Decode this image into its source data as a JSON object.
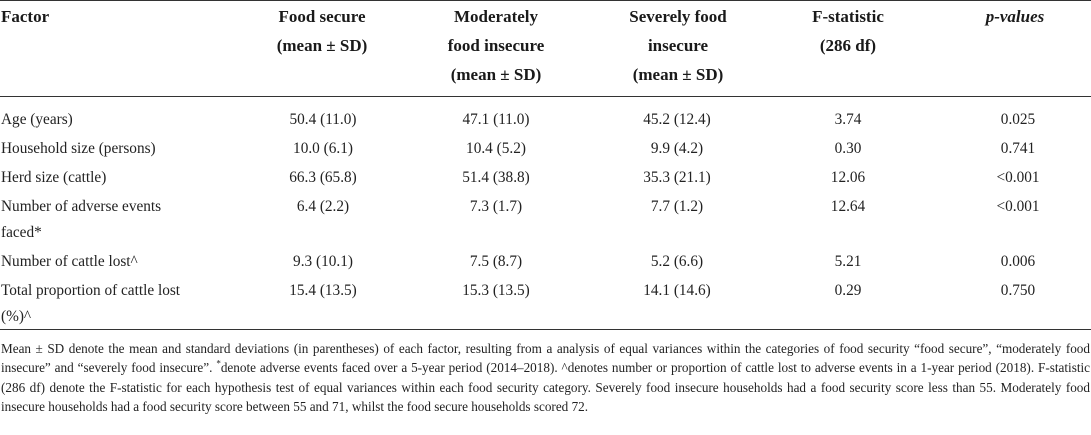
{
  "table": {
    "headers": {
      "factor": [
        "Factor"
      ],
      "food_secure": [
        "Food secure",
        "(mean ± SD)"
      ],
      "moderately": [
        "Moderately",
        "food insecure",
        "(mean ± SD)"
      ],
      "severely": [
        "Severely food",
        "insecure",
        "(mean ± SD)"
      ],
      "fstat": [
        "F-statistic",
        "(286 df)"
      ],
      "pval": [
        "p-values"
      ]
    },
    "rows": [
      {
        "label": [
          "Age (years)"
        ],
        "food_secure": "50.4 (11.0)",
        "moderately": "47.1 (11.0)",
        "severely": "45.2 (12.4)",
        "fstat": "3.74",
        "pval": "0.025"
      },
      {
        "label": [
          "Household size (persons)"
        ],
        "food_secure": "10.0 (6.1)",
        "moderately": "10.4 (5.2)",
        "severely": "9.9 (4.2)",
        "fstat": "0.30",
        "pval": "0.741"
      },
      {
        "label": [
          "Herd size (cattle)"
        ],
        "food_secure": "66.3 (65.8)",
        "moderately": "51.4 (38.8)",
        "severely": "35.3 (21.1)",
        "fstat": "12.06",
        "pval": "<0.001"
      },
      {
        "label": [
          "Number of adverse events",
          "faced*"
        ],
        "food_secure": "6.4 (2.2)",
        "moderately": "7.3 (1.7)",
        "severely": "7.7 (1.2)",
        "fstat": "12.64",
        "pval": "<0.001"
      },
      {
        "label": [
          "Number of cattle lost^"
        ],
        "food_secure": "9.3 (10.1)",
        "moderately": "7.5 (8.7)",
        "severely": "5.2 (6.6)",
        "fstat": "5.21",
        "pval": "0.006"
      },
      {
        "label": [
          "Total proportion of cattle lost",
          "(%)^"
        ],
        "food_secure": "15.4 (13.5)",
        "moderately": "15.3 (13.5)",
        "severely": "14.1 (14.6)",
        "fstat": "0.29",
        "pval": "0.750"
      }
    ]
  },
  "footnote": {
    "part1": "Mean ± SD denote the mean and standard deviations (in parentheses) of each factor, resulting from a analysis of equal variances within the categories of food security “food secure”, “moderately food insecure” and “severely food insecure”. ",
    "star": "*",
    "part2": "denote adverse events faced over a 5-year period (2014–2018). ",
    "caret": "^",
    "part3": "denotes number or proportion of cattle lost to adverse events in a 1-year period (2018). F-statistic (286 df) denote the F-statistic for each hypothesis test of equal variances within each food security category. Severely food insecure households had a food security score less than 55. Moderately food insecure households had a food security score between 55 and 71, whilst the food secure households scored 72."
  }
}
